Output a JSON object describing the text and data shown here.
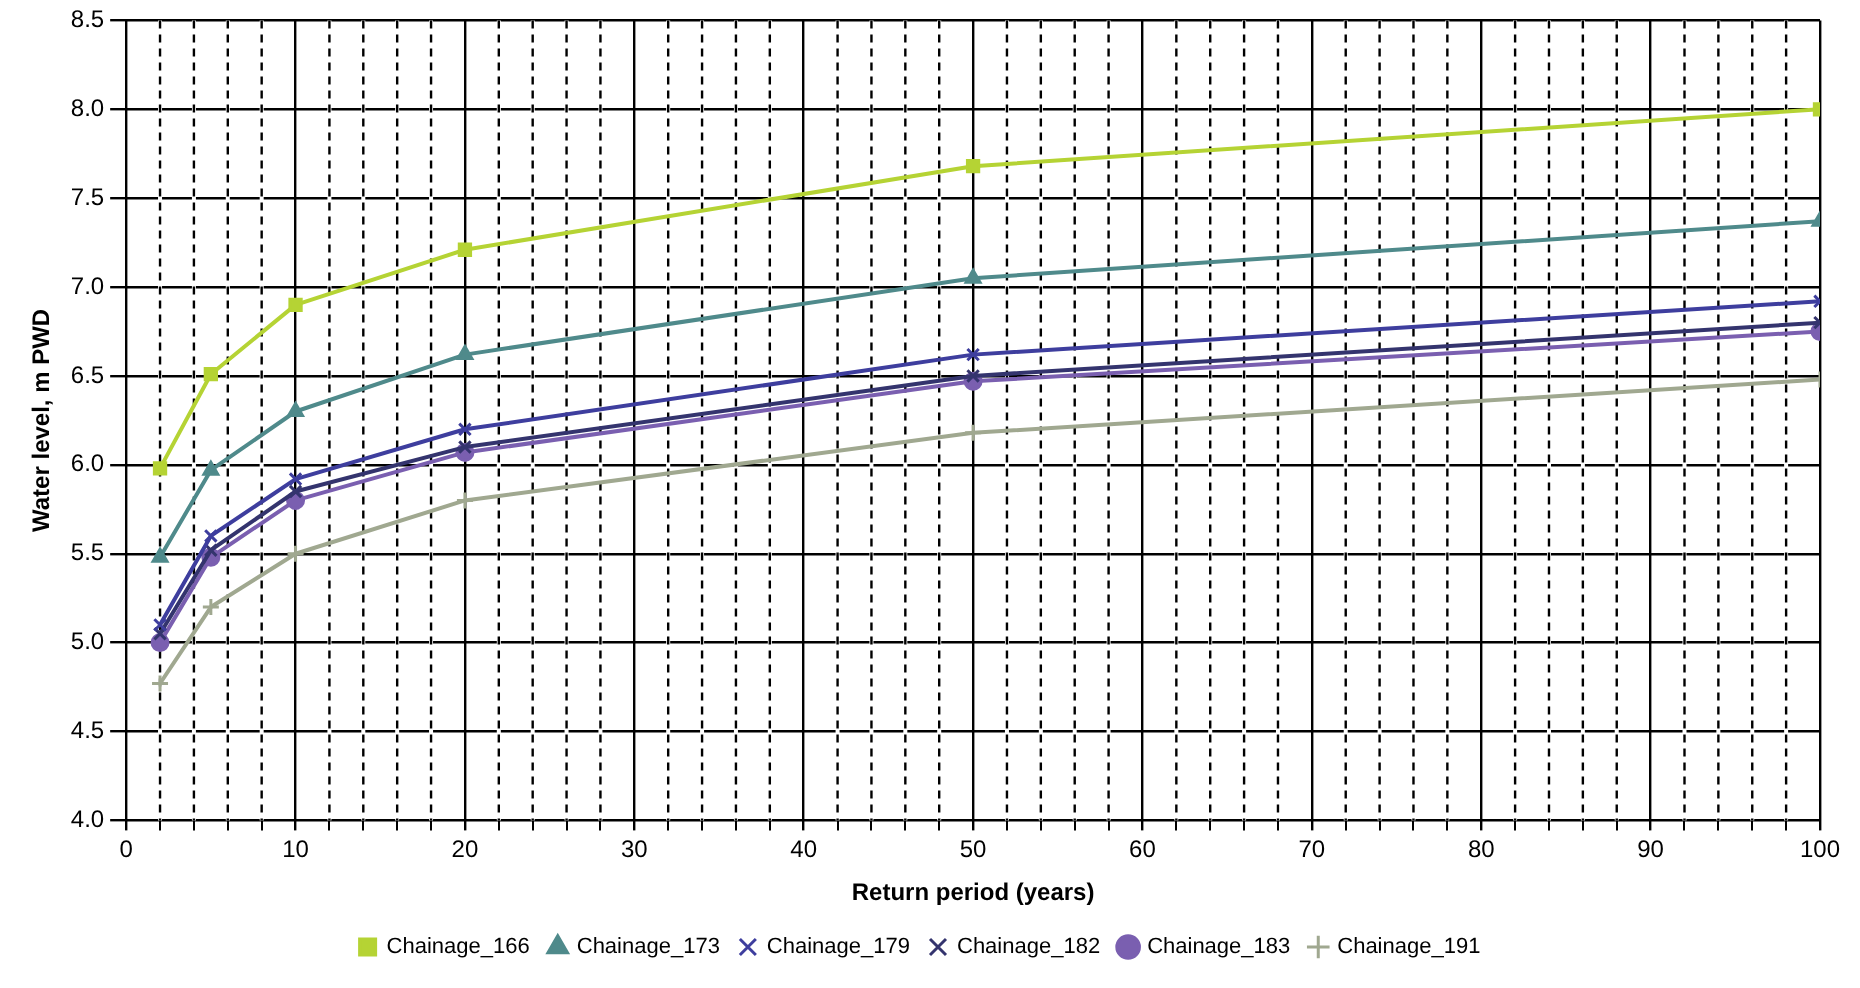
{
  "chart_data": {
    "type": "line",
    "xlabel": "Return period (years)",
    "ylabel": "Water level, m PWD",
    "xlim": [
      0,
      100
    ],
    "xticks": [
      0,
      {
        "value": 2,
        "label": null
      },
      {
        "value": 4,
        "label": null
      },
      {
        "value": 6,
        "label": null
      },
      {
        "value": 8,
        "label": null
      },
      10,
      {
        "value": 12,
        "label": null
      },
      {
        "value": 14,
        "label": null
      },
      {
        "value": 16,
        "label": null
      },
      {
        "value": 18,
        "label": null
      },
      20,
      {
        "value": 22,
        "label": null
      },
      {
        "value": 24,
        "label": null
      },
      {
        "value": 26,
        "label": null
      },
      {
        "value": 28,
        "label": null
      },
      30,
      {
        "value": 32,
        "label": null
      },
      {
        "value": 34,
        "label": null
      },
      {
        "value": 36,
        "label": null
      },
      {
        "value": 38,
        "label": null
      },
      40,
      {
        "value": 42,
        "label": null
      },
      {
        "value": 44,
        "label": null
      },
      {
        "value": 46,
        "label": null
      },
      {
        "value": 48,
        "label": null
      },
      50,
      {
        "value": 52,
        "label": null
      },
      {
        "value": 54,
        "label": null
      },
      {
        "value": 56,
        "label": null
      },
      {
        "value": 58,
        "label": null
      },
      60,
      {
        "value": 62,
        "label": null
      },
      {
        "value": 64,
        "label": null
      },
      {
        "value": 66,
        "label": null
      },
      {
        "value": 68,
        "label": null
      },
      70,
      {
        "value": 72,
        "label": null
      },
      {
        "value": 74,
        "label": null
      },
      {
        "value": 76,
        "label": null
      },
      {
        "value": 78,
        "label": null
      },
      80,
      {
        "value": 82,
        "label": null
      },
      {
        "value": 84,
        "label": null
      },
      {
        "value": 86,
        "label": null
      },
      {
        "value": 88,
        "label": null
      },
      90,
      {
        "value": 92,
        "label": null
      },
      {
        "value": 94,
        "label": null
      },
      {
        "value": 96,
        "label": null
      },
      {
        "value": 98,
        "label": null
      },
      100
    ],
    "ylim": [
      4,
      8.5
    ],
    "yticks": [
      {
        "value": 4,
        "label": "4.0"
      },
      4.5,
      {
        "value": 5,
        "label": "5.0"
      },
      5.5,
      {
        "value": 6,
        "label": "6.0"
      },
      6.5,
      {
        "value": 7,
        "label": "7.0"
      },
      7.5,
      {
        "value": 8,
        "label": "8.0"
      },
      8.5
    ],
    "x": [
      2,
      5,
      10,
      20,
      50,
      100
    ],
    "grid": true,
    "legend": "bottom",
    "series": [
      {
        "name": "Chainage_166",
        "color": "#b5d334",
        "marker": "square",
        "values": [
          5.98,
          6.51,
          6.9,
          7.21,
          7.68,
          8.0
        ]
      },
      {
        "name": "Chainage_173",
        "color": "#4f8a8b",
        "marker": "triangle",
        "values": [
          5.48,
          5.97,
          6.3,
          6.62,
          7.05,
          7.37
        ]
      },
      {
        "name": "Chainage_179",
        "color": "#3e3e9e",
        "marker": "cross",
        "values": [
          5.1,
          5.6,
          5.92,
          6.2,
          6.62,
          6.92
        ]
      },
      {
        "name": "Chainage_182",
        "color": "#34346e",
        "marker": "cross",
        "values": [
          5.05,
          5.52,
          5.85,
          6.1,
          6.5,
          6.8
        ]
      },
      {
        "name": "Chainage_183",
        "color": "#7a5fb0",
        "marker": "circle",
        "values": [
          5.0,
          5.48,
          5.8,
          6.07,
          6.47,
          6.75
        ]
      },
      {
        "name": "Chainage_191",
        "color": "#a0a890",
        "marker": "plus",
        "values": [
          4.77,
          5.2,
          5.5,
          5.8,
          6.18,
          6.48
        ]
      }
    ]
  }
}
